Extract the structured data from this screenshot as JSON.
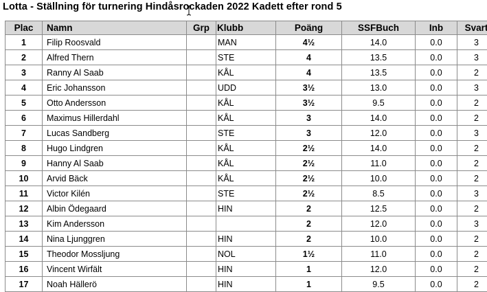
{
  "title": "Lotta - Ställning för turnering Hindåsrockaden 2022 Kadett efter rond 5",
  "headers": {
    "plac": "Plac",
    "namn": "Namn",
    "grp": "Grp",
    "klubb": "Klubb",
    "poang": "Poäng",
    "buch": "SSFBuch",
    "inb": "Inb",
    "svart": "Svart"
  },
  "rows": [
    {
      "plac": "1",
      "namn": "Filip Roosvald",
      "grp": "",
      "klubb": "MAN",
      "poang": "4½",
      "buch": "14.0",
      "inb": "0.0",
      "svart": "3"
    },
    {
      "plac": "2",
      "namn": "Alfred Thern",
      "grp": "",
      "klubb": "STE",
      "poang": "4",
      "buch": "13.5",
      "inb": "0.0",
      "svart": "3"
    },
    {
      "plac": "3",
      "namn": "Ranny Al Saab",
      "grp": "",
      "klubb": "KÅL",
      "poang": "4",
      "buch": "13.5",
      "inb": "0.0",
      "svart": "2"
    },
    {
      "plac": "4",
      "namn": "Eric Johansson",
      "grp": "",
      "klubb": "UDD",
      "poang": "3½",
      "buch": "13.0",
      "inb": "0.0",
      "svart": "3"
    },
    {
      "plac": "5",
      "namn": "Otto Andersson",
      "grp": "",
      "klubb": "KÅL",
      "poang": "3½",
      "buch": "9.5",
      "inb": "0.0",
      "svart": "2"
    },
    {
      "plac": "6",
      "namn": "Maximus Hillerdahl",
      "grp": "",
      "klubb": "KÅL",
      "poang": "3",
      "buch": "14.0",
      "inb": "0.0",
      "svart": "2"
    },
    {
      "plac": "7",
      "namn": "Lucas Sandberg",
      "grp": "",
      "klubb": "STE",
      "poang": "3",
      "buch": "12.0",
      "inb": "0.0",
      "svart": "3"
    },
    {
      "plac": "8",
      "namn": "Hugo Lindgren",
      "grp": "",
      "klubb": "KÅL",
      "poang": "2½",
      "buch": "14.0",
      "inb": "0.0",
      "svart": "2"
    },
    {
      "plac": "9",
      "namn": "Hanny Al Saab",
      "grp": "",
      "klubb": "KÅL",
      "poang": "2½",
      "buch": "11.0",
      "inb": "0.0",
      "svart": "2"
    },
    {
      "plac": "10",
      "namn": "Arvid Bäck",
      "grp": "",
      "klubb": "KÅL",
      "poang": "2½",
      "buch": "10.0",
      "inb": "0.0",
      "svart": "2"
    },
    {
      "plac": "11",
      "namn": "Victor Kilén",
      "grp": "",
      "klubb": "STE",
      "poang": "2½",
      "buch": "8.5",
      "inb": "0.0",
      "svart": "3"
    },
    {
      "plac": "12",
      "namn": "Albin Ödegaard",
      "grp": "",
      "klubb": "HIN",
      "poang": "2",
      "buch": "12.5",
      "inb": "0.0",
      "svart": "2"
    },
    {
      "plac": "13",
      "namn": "Kim Andersson",
      "grp": "",
      "klubb": "",
      "poang": "2",
      "buch": "12.0",
      "inb": "0.0",
      "svart": "3"
    },
    {
      "plac": "14",
      "namn": "Nina Ljunggren",
      "grp": "",
      "klubb": "HIN",
      "poang": "2",
      "buch": "10.0",
      "inb": "0.0",
      "svart": "2"
    },
    {
      "plac": "15",
      "namn": "Theodor Mossljung",
      "grp": "",
      "klubb": "NOL",
      "poang": "1½",
      "buch": "11.0",
      "inb": "0.0",
      "svart": "2"
    },
    {
      "plac": "16",
      "namn": "Vincent Wirfält",
      "grp": "",
      "klubb": "HIN",
      "poang": "1",
      "buch": "12.0",
      "inb": "0.0",
      "svart": "2"
    },
    {
      "plac": "17",
      "namn": "Noah Hällerö",
      "grp": "",
      "klubb": "HIN",
      "poang": "1",
      "buch": "9.5",
      "inb": "0.0",
      "svart": "2"
    }
  ],
  "icons": {
    "cursor": "text-cursor-icon"
  }
}
